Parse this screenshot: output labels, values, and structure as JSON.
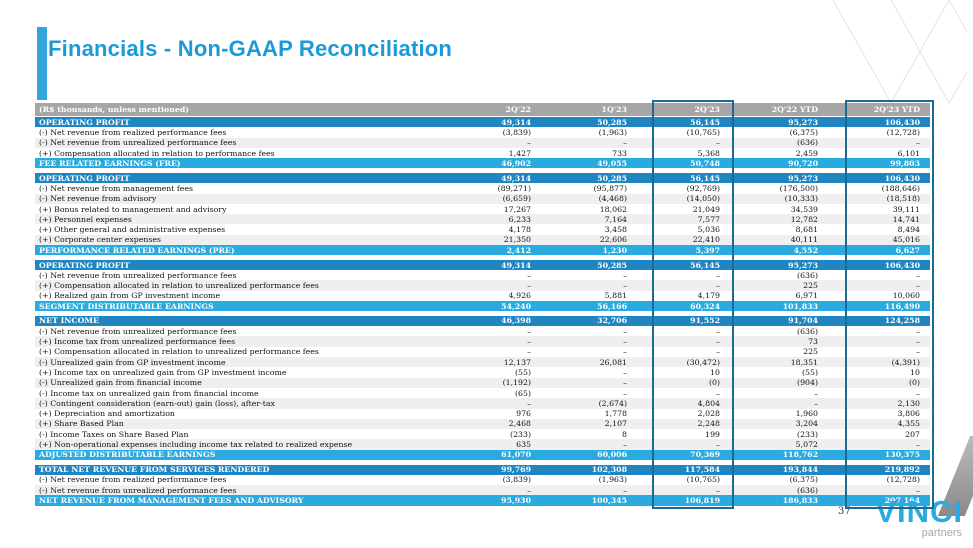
{
  "slide": {
    "title": "Financials - Non-GAAP Reconciliation",
    "page_number": "37"
  },
  "logo": {
    "brand": "VINCI",
    "sub": "partners"
  },
  "table": {
    "unit_label": "(R$ thousands, unless mentioned)",
    "columns": [
      "2Q'22",
      "1Q'23",
      "2Q'23",
      "2Q'22 YTD",
      "2Q'23 YTD"
    ],
    "highlighted_columns": [
      "2Q'23",
      "2Q'23 YTD"
    ],
    "sections": [
      {
        "rows": [
          {
            "label": "OPERATING PROFIT",
            "type": "header",
            "values": [
              "49,314",
              "50,285",
              "56,145",
              "95,273",
              "106,430"
            ]
          },
          {
            "label": "(-) Net revenue from realized performance fees",
            "type": "item",
            "values": [
              "(3,839)",
              "(1,963)",
              "(10,765)",
              "(6,375)",
              "(12,728)"
            ]
          },
          {
            "label": "(-) Net revenue from unrealized performance fees",
            "type": "item",
            "values": [
              "–",
              "–",
              "–",
              "(636)",
              "–"
            ]
          },
          {
            "label": "(+) Compensation allocated in relation to performance fees",
            "type": "item",
            "values": [
              "1,427",
              "733",
              "5,368",
              "2,459",
              "6,101"
            ]
          },
          {
            "label": "FEE RELATED EARNINGS (FRE)",
            "type": "total",
            "values": [
              "46,902",
              "49,055",
              "50,748",
              "90,720",
              "99,803"
            ]
          }
        ]
      },
      {
        "rows": [
          {
            "label": "OPERATING PROFIT",
            "type": "header",
            "values": [
              "49,314",
              "50,285",
              "56,145",
              "95,273",
              "106,430"
            ]
          },
          {
            "label": "(-) Net revenue from management fees",
            "type": "item",
            "values": [
              "(89,271)",
              "(95,877)",
              "(92,769)",
              "(176,500)",
              "(188,646)"
            ]
          },
          {
            "label": "(-) Net revenue from advisory",
            "type": "item",
            "values": [
              "(6,659)",
              "(4,468)",
              "(14,050)",
              "(10,333)",
              "(18,518)"
            ]
          },
          {
            "label": "(+) Bonus related to management and advisory",
            "type": "item",
            "values": [
              "17,267",
              "18,062",
              "21,049",
              "34,539",
              "39,111"
            ]
          },
          {
            "label": "(+) Personnel expenses",
            "type": "item",
            "values": [
              "6,233",
              "7,164",
              "7,577",
              "12,782",
              "14,741"
            ]
          },
          {
            "label": "(+) Other general and administrative expenses",
            "type": "item",
            "values": [
              "4,178",
              "3,458",
              "5,036",
              "8,681",
              "8,494"
            ]
          },
          {
            "label": "(+) Corporate center expenses",
            "type": "item",
            "values": [
              "21,350",
              "22,606",
              "22,410",
              "40,111",
              "45,016"
            ]
          },
          {
            "label": "PERFORMANCE RELATED EARNINGS (PRE)",
            "type": "total",
            "values": [
              "2,412",
              "1,230",
              "5,397",
              "4,552",
              "6,627"
            ]
          }
        ]
      },
      {
        "rows": [
          {
            "label": "OPERATING PROFIT",
            "type": "header",
            "values": [
              "49,314",
              "50,285",
              "56,145",
              "95,273",
              "106,430"
            ]
          },
          {
            "label": "(-) Net revenue from unrealized performance fees",
            "type": "item",
            "values": [
              "–",
              "–",
              "–",
              "(636)",
              "–"
            ]
          },
          {
            "label": "(+) Compensation allocated in relation to unrealized performance fees",
            "type": "item",
            "values": [
              "–",
              "–",
              "–",
              "225",
              "–"
            ]
          },
          {
            "label": "(+) Realized gain from GP investment income",
            "type": "item",
            "values": [
              "4,926",
              "5,881",
              "4,179",
              "6,971",
              "10,060"
            ]
          },
          {
            "label": "SEGMENT DISTRIBUTABLE EARNINGS",
            "type": "total",
            "values": [
              "54,240",
              "56,166",
              "60,324",
              "101,833",
              "116,490"
            ]
          }
        ]
      },
      {
        "rows": [
          {
            "label": "NET INCOME",
            "type": "header",
            "values": [
              "46,398",
              "32,706",
              "91,552",
              "91,704",
              "124,258"
            ]
          },
          {
            "label": "(-) Net revenue from unrealized performance fees",
            "type": "item",
            "values": [
              "–",
              "–",
              "–",
              "(636)",
              "–"
            ]
          },
          {
            "label": "(+) Income tax from unrealized performance fees",
            "type": "item",
            "values": [
              "–",
              "–",
              "–",
              "73",
              "–"
            ]
          },
          {
            "label": "(+) Compensation allocated in relation to unrealized performance fees",
            "type": "item",
            "values": [
              "–",
              "–",
              "–",
              "225",
              "–"
            ]
          },
          {
            "label": "(-) Unrealized gain from GP investment income",
            "type": "item",
            "values": [
              "12,137",
              "26,081",
              "(30,472)",
              "18,351",
              "(4,391)"
            ]
          },
          {
            "label": "(+) Income tax on unrealized gain from GP investment income",
            "type": "item",
            "values": [
              "(55)",
              "–",
              "10",
              "(55)",
              "10"
            ]
          },
          {
            "label": "(-) Unrealized gain from financial income",
            "type": "item",
            "values": [
              "(1,192)",
              "–",
              "(0)",
              "(904)",
              "(0)"
            ]
          },
          {
            "label": "(-) Income tax on unrealized gain from financial income",
            "type": "item",
            "values": [
              "(65)",
              "–",
              "–",
              "–",
              "–"
            ]
          },
          {
            "label": "(-) Contingent consideration (earn-out) gain (loss), after-tax",
            "type": "item",
            "values": [
              "–",
              "(2,674)",
              "4,804",
              "–",
              "2,130"
            ]
          },
          {
            "label": "(+) Depreciation and amortization",
            "type": "item",
            "values": [
              "976",
              "1,778",
              "2,028",
              "1,960",
              "3,806"
            ]
          },
          {
            "label": "(+) Share Based Plan",
            "type": "item",
            "values": [
              "2,468",
              "2,107",
              "2,248",
              "3,204",
              "4,355"
            ]
          },
          {
            "label": "(-) Income Taxes on Share Based Plan",
            "type": "item",
            "values": [
              "(233)",
              "8",
              "199",
              "(233)",
              "207"
            ]
          },
          {
            "label": "(+) Non-operational expenses including income tax related to realized expense",
            "type": "item",
            "values": [
              "635",
              "–",
              "–",
              "5,072",
              "–"
            ]
          },
          {
            "label": "ADJUSTED DISTRIBUTABLE EARNINGS",
            "type": "total",
            "values": [
              "61,070",
              "60,006",
              "70,369",
              "118,762",
              "130,375"
            ]
          }
        ]
      },
      {
        "rows": [
          {
            "label": "TOTAL NET REVENUE FROM SERVICES RENDERED",
            "type": "header",
            "values": [
              "99,769",
              "102,308",
              "117,584",
              "193,844",
              "219,892"
            ]
          },
          {
            "label": "(-) Net revenue from realized performance fees",
            "type": "item",
            "values": [
              "(3,839)",
              "(1,963)",
              "(10,765)",
              "(6,375)",
              "(12,728)"
            ]
          },
          {
            "label": "(-) Net revenue from unrealized performance fees",
            "type": "item",
            "values": [
              "–",
              "–",
              "–",
              "(636)",
              "–"
            ]
          },
          {
            "label": "NET REVENUE FROM MANAGEMENT FEES AND ADVISORY",
            "type": "total",
            "values": [
              "95,930",
              "100,345",
              "106,819",
              "186,833",
              "207,164"
            ]
          }
        ]
      }
    ]
  }
}
